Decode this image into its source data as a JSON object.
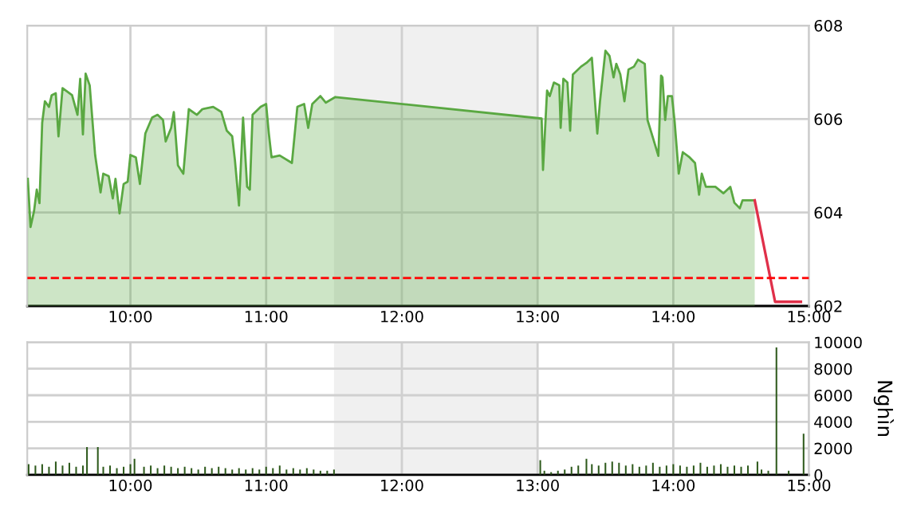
{
  "chart_data": [
    {
      "type": "area",
      "xlim": [
        9.24,
        15
      ],
      "ylim": [
        602,
        608
      ],
      "xticks": [
        {
          "value": 10,
          "label": "10:00"
        },
        {
          "value": 11,
          "label": "11:00"
        },
        {
          "value": 12,
          "label": "12:00"
        },
        {
          "value": 13,
          "label": "13:00"
        },
        {
          "value": 14,
          "label": "14:00"
        },
        {
          "value": 15,
          "label": "15:00"
        }
      ],
      "yticks": [
        602,
        604,
        606,
        608
      ],
      "grid": true,
      "bands": [
        {
          "axis": "x",
          "from": 11.5,
          "to": 13,
          "color": "#f0f0f0"
        }
      ],
      "ref_lines": [
        {
          "axis": "y",
          "value": 602.6,
          "color": "#ff0000",
          "line_style": "dashed"
        }
      ],
      "series": [
        {
          "type": "area",
          "color": "#5aa842",
          "x": [
            9.244,
            9.264,
            9.29,
            9.31,
            9.33,
            9.35,
            9.37,
            9.4,
            9.42,
            9.45,
            9.47,
            9.5,
            9.57,
            9.61,
            9.63,
            9.65,
            9.67,
            9.7,
            9.74,
            9.78,
            9.8,
            9.84,
            9.87,
            9.89,
            9.92,
            9.95,
            9.98,
            10.0,
            10.04,
            10.07,
            10.11,
            10.16,
            10.2,
            10.24,
            10.26,
            10.3,
            10.32,
            10.35,
            10.39,
            10.43,
            10.49,
            10.53,
            10.61,
            10.67,
            10.71,
            10.75,
            10.77,
            10.8,
            10.83,
            10.86,
            10.88,
            10.9,
            10.96,
            11.0,
            11.02,
            11.04,
            11.1,
            11.19,
            11.23,
            11.28,
            11.31,
            11.34,
            11.4,
            11.44,
            11.51,
            13.03,
            13.04,
            13.07,
            13.09,
            13.12,
            13.16,
            13.17,
            13.19,
            13.22,
            13.24,
            13.26,
            13.32,
            13.36,
            13.4,
            13.44,
            13.46,
            13.5,
            13.53,
            13.56,
            13.58,
            13.61,
            13.64,
            13.67,
            13.71,
            13.74,
            13.79,
            13.81,
            13.85,
            13.89,
            13.91,
            13.92,
            13.94,
            13.96,
            13.99,
            14.01,
            14.04,
            14.07,
            14.12,
            14.16,
            14.19,
            14.21,
            14.24,
            14.31,
            14.37,
            14.42,
            14.45,
            14.49,
            14.51,
            14.6
          ],
          "values": [
            604.72,
            603.69,
            604.03,
            604.49,
            604.2,
            605.92,
            606.38,
            606.26,
            606.51,
            606.55,
            605.63,
            606.66,
            606.51,
            606.09,
            606.86,
            605.67,
            606.97,
            606.72,
            605.23,
            604.43,
            604.83,
            604.78,
            604.3,
            604.72,
            603.98,
            604.61,
            604.66,
            605.23,
            605.18,
            604.61,
            605.69,
            606.03,
            606.09,
            605.98,
            605.52,
            605.81,
            606.15,
            605.01,
            604.83,
            606.21,
            606.09,
            606.21,
            606.26,
            606.15,
            605.75,
            605.63,
            605.12,
            604.15,
            606.03,
            604.55,
            604.49,
            606.09,
            606.26,
            606.32,
            605.69,
            605.18,
            605.22,
            605.06,
            606.26,
            606.32,
            605.81,
            606.32,
            606.49,
            606.35,
            606.47,
            606.01,
            604.91,
            606.61,
            606.49,
            606.78,
            606.72,
            605.81,
            606.86,
            606.78,
            605.75,
            606.95,
            607.12,
            607.2,
            607.31,
            605.69,
            606.38,
            607.46,
            607.35,
            606.89,
            607.18,
            606.95,
            606.38,
            607.06,
            607.12,
            607.27,
            607.18,
            605.98,
            605.6,
            605.21,
            606.93,
            606.89,
            605.98,
            606.49,
            606.49,
            605.94,
            604.83,
            605.29,
            605.18,
            605.06,
            604.38,
            604.83,
            604.55,
            604.55,
            604.41,
            604.55,
            604.21,
            604.09,
            604.26,
            604.26
          ]
        },
        {
          "type": "line",
          "color": "#e0304a",
          "x": [
            14.6,
            14.75,
            14.94
          ],
          "values": [
            604.26,
            602.09,
            602.09
          ]
        }
      ]
    },
    {
      "type": "bar",
      "xlim": [
        9.24,
        15
      ],
      "ylim": [
        0,
        10000
      ],
      "ylabel": "Nghìn",
      "color": "#2e5a1c",
      "xticks": [
        {
          "value": 10,
          "label": "10:00"
        },
        {
          "value": 11,
          "label": "11:00"
        },
        {
          "value": 12,
          "label": "12:00"
        },
        {
          "value": 13,
          "label": "13:00"
        },
        {
          "value": 14,
          "label": "14:00"
        },
        {
          "value": 15,
          "label": "15:00"
        }
      ],
      "yticks": [
        0,
        2000,
        4000,
        6000,
        8000,
        10000
      ],
      "grid": true,
      "bands": [
        {
          "axis": "x",
          "from": 11.5,
          "to": 13,
          "color": "#f0f0f0"
        }
      ],
      "x": [
        9.25,
        9.3,
        9.35,
        9.4,
        9.45,
        9.5,
        9.55,
        9.6,
        9.65,
        9.68,
        9.76,
        9.8,
        9.85,
        9.9,
        9.95,
        10.0,
        10.03,
        10.1,
        10.15,
        10.2,
        10.25,
        10.3,
        10.35,
        10.4,
        10.45,
        10.5,
        10.55,
        10.6,
        10.65,
        10.7,
        10.75,
        10.8,
        10.85,
        10.9,
        10.95,
        11.0,
        11.05,
        11.1,
        11.15,
        11.2,
        11.25,
        11.3,
        11.35,
        11.4,
        11.45,
        11.5,
        13.02,
        13.05,
        13.1,
        13.15,
        13.2,
        13.25,
        13.3,
        13.36,
        13.4,
        13.45,
        13.5,
        13.55,
        13.6,
        13.65,
        13.7,
        13.75,
        13.8,
        13.85,
        13.9,
        13.95,
        14.0,
        14.05,
        14.1,
        14.15,
        14.2,
        14.25,
        14.3,
        14.35,
        14.4,
        14.45,
        14.5,
        14.55,
        14.62,
        14.65,
        14.7,
        14.76,
        14.85,
        14.96
      ],
      "values": [
        800,
        700,
        800,
        600,
        1000,
        700,
        900,
        600,
        700,
        2100,
        2100,
        600,
        700,
        500,
        600,
        800,
        1200,
        600,
        700,
        500,
        700,
        600,
        500,
        600,
        500,
        400,
        600,
        500,
        600,
        500,
        400,
        500,
        400,
        500,
        400,
        600,
        500,
        700,
        400,
        500,
        400,
        500,
        400,
        300,
        300,
        400,
        1100,
        300,
        200,
        300,
        400,
        600,
        700,
        1200,
        800,
        700,
        900,
        1000,
        900,
        700,
        800,
        600,
        700,
        900,
        600,
        700,
        800,
        700,
        600,
        700,
        900,
        600,
        700,
        800,
        600,
        700,
        600,
        700,
        1000,
        400,
        300,
        9600,
        300,
        3100
      ]
    }
  ]
}
